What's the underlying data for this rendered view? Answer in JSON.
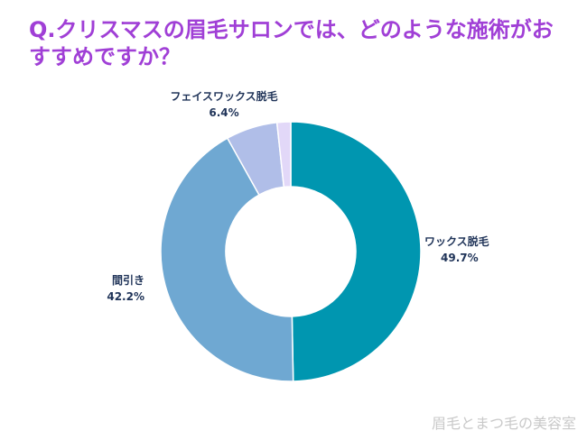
{
  "chart_data": {
    "type": "pie",
    "title": "Q.クリスマスの眉毛サロンでは、どのような施術がおすすめですか？",
    "donut": true,
    "slices": [
      {
        "label": "ワックス脱毛",
        "value": 49.7,
        "value_text": "49.7%",
        "color": "#0096b0"
      },
      {
        "label": "間引き",
        "value": 42.2,
        "value_text": "42.2%",
        "color": "#6fa8d2"
      },
      {
        "label": "フェイスワックス脱毛",
        "value": 6.4,
        "value_text": "6.4%",
        "color": "#b0bee8"
      },
      {
        "label": "",
        "value": 1.7,
        "value_text": "",
        "color": "#e2d8f8"
      }
    ]
  },
  "watermark": "眉毛とまつ毛の美容室"
}
